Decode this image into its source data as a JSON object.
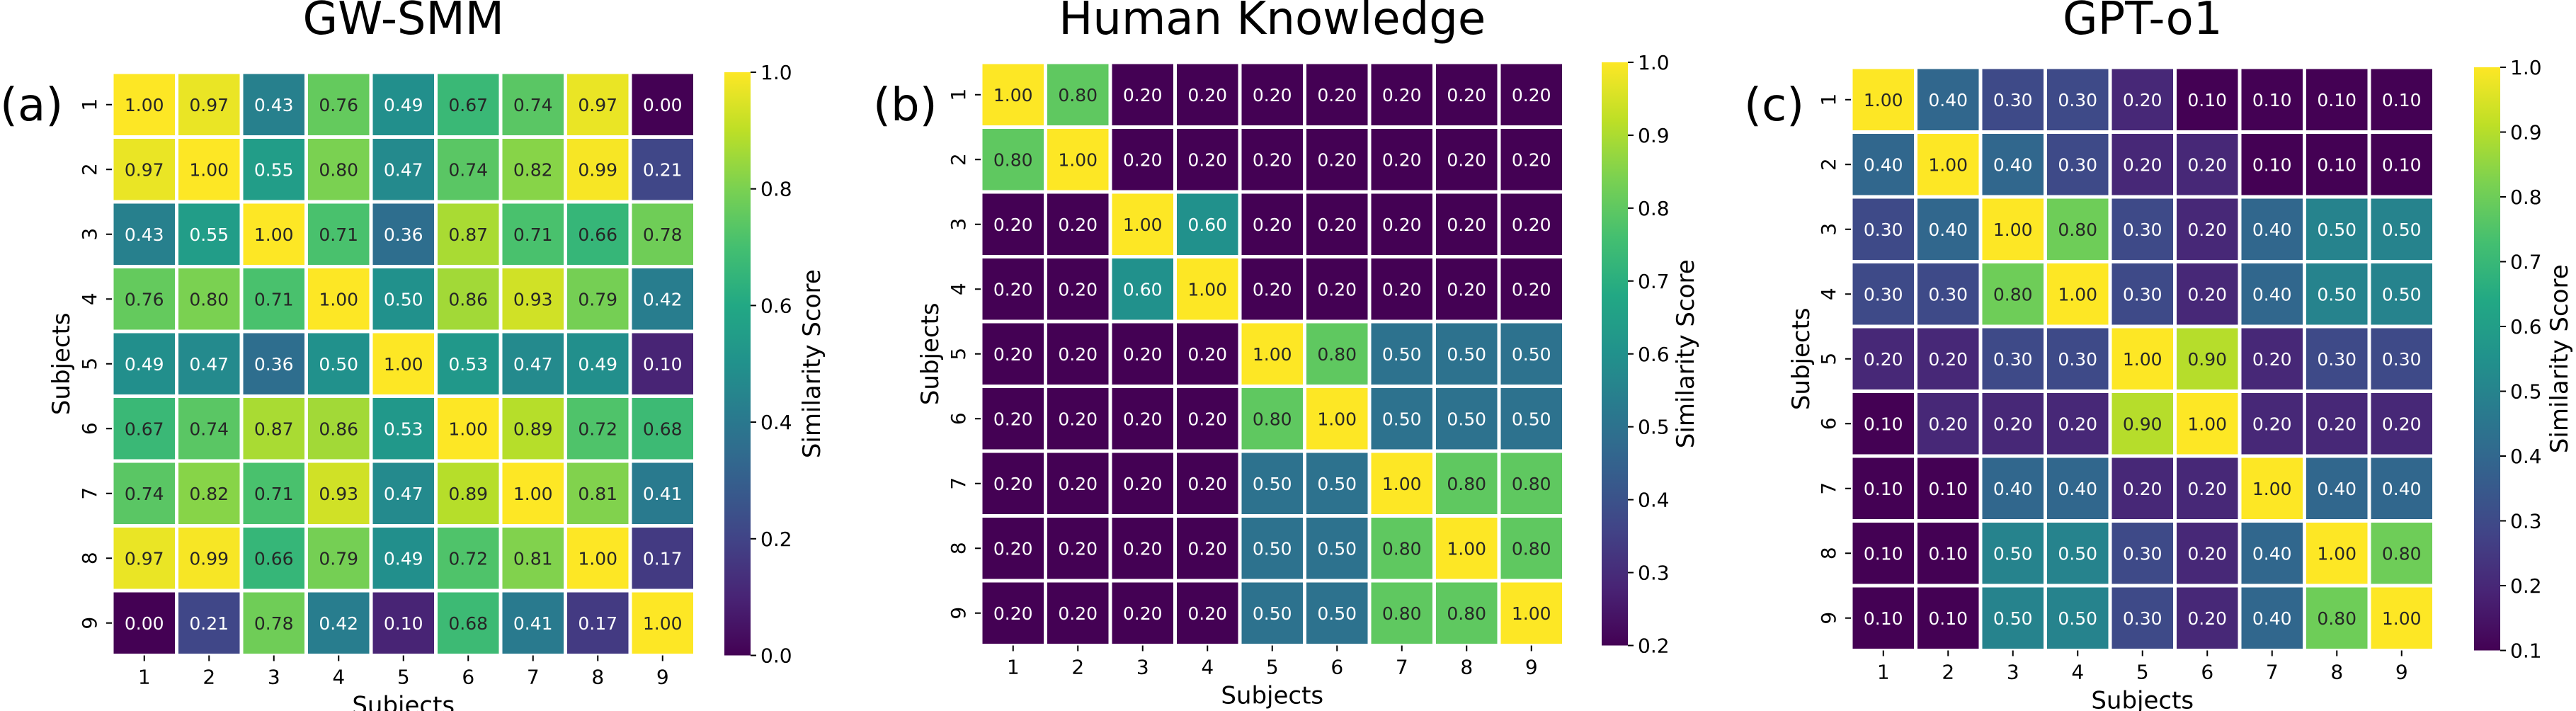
{
  "chart_data": [
    {
      "type": "heatmap",
      "panel_label": "(a)",
      "title": "GW-SMM",
      "xlabel": "Subjects",
      "ylabel": "Subjects",
      "x_categories": [
        "1",
        "2",
        "3",
        "4",
        "5",
        "6",
        "7",
        "8",
        "9"
      ],
      "y_categories": [
        "1",
        "2",
        "3",
        "4",
        "5",
        "6",
        "7",
        "8",
        "9"
      ],
      "values": [
        [
          1.0,
          0.97,
          0.43,
          0.76,
          0.49,
          0.67,
          0.74,
          0.97,
          0.0
        ],
        [
          0.97,
          1.0,
          0.55,
          0.8,
          0.47,
          0.74,
          0.82,
          0.99,
          0.21
        ],
        [
          0.43,
          0.55,
          1.0,
          0.71,
          0.36,
          0.87,
          0.71,
          0.66,
          0.78
        ],
        [
          0.76,
          0.8,
          0.71,
          1.0,
          0.5,
          0.86,
          0.93,
          0.79,
          0.42
        ],
        [
          0.49,
          0.47,
          0.36,
          0.5,
          1.0,
          0.53,
          0.47,
          0.49,
          0.1
        ],
        [
          0.67,
          0.74,
          0.87,
          0.86,
          0.53,
          1.0,
          0.89,
          0.72,
          0.68
        ],
        [
          0.74,
          0.82,
          0.71,
          0.93,
          0.47,
          0.89,
          1.0,
          0.81,
          0.41
        ],
        [
          0.97,
          0.99,
          0.66,
          0.79,
          0.49,
          0.72,
          0.81,
          1.0,
          0.17
        ],
        [
          0.0,
          0.21,
          0.78,
          0.42,
          0.1,
          0.68,
          0.41,
          0.17,
          1.0
        ]
      ],
      "colorbar": {
        "label": "Similarity Score",
        "range": [
          0.0,
          1.0
        ],
        "ticks": [
          "0.0",
          "0.2",
          "0.4",
          "0.6",
          "0.8",
          "1.0"
        ],
        "colormap": "viridis"
      }
    },
    {
      "type": "heatmap",
      "panel_label": "(b)",
      "title": "Human Knowledge",
      "xlabel": "Subjects",
      "ylabel": "Subjects",
      "x_categories": [
        "1",
        "2",
        "3",
        "4",
        "5",
        "6",
        "7",
        "8",
        "9"
      ],
      "y_categories": [
        "1",
        "2",
        "3",
        "4",
        "5",
        "6",
        "7",
        "8",
        "9"
      ],
      "values": [
        [
          1.0,
          0.8,
          0.2,
          0.2,
          0.2,
          0.2,
          0.2,
          0.2,
          0.2
        ],
        [
          0.8,
          1.0,
          0.2,
          0.2,
          0.2,
          0.2,
          0.2,
          0.2,
          0.2
        ],
        [
          0.2,
          0.2,
          1.0,
          0.6,
          0.2,
          0.2,
          0.2,
          0.2,
          0.2
        ],
        [
          0.2,
          0.2,
          0.6,
          1.0,
          0.2,
          0.2,
          0.2,
          0.2,
          0.2
        ],
        [
          0.2,
          0.2,
          0.2,
          0.2,
          1.0,
          0.8,
          0.5,
          0.5,
          0.5
        ],
        [
          0.2,
          0.2,
          0.2,
          0.2,
          0.8,
          1.0,
          0.5,
          0.5,
          0.5
        ],
        [
          0.2,
          0.2,
          0.2,
          0.2,
          0.5,
          0.5,
          1.0,
          0.8,
          0.8
        ],
        [
          0.2,
          0.2,
          0.2,
          0.2,
          0.5,
          0.5,
          0.8,
          1.0,
          0.8
        ],
        [
          0.2,
          0.2,
          0.2,
          0.2,
          0.5,
          0.5,
          0.8,
          0.8,
          1.0
        ]
      ],
      "colorbar": {
        "label": "Similarity Score",
        "range": [
          0.2,
          1.0
        ],
        "ticks": [
          "0.2",
          "0.3",
          "0.4",
          "0.5",
          "0.6",
          "0.7",
          "0.8",
          "0.9",
          "1.0"
        ],
        "colormap": "viridis"
      }
    },
    {
      "type": "heatmap",
      "panel_label": "(c)",
      "title": "GPT-o1",
      "xlabel": "Subjects",
      "ylabel": "Subjects",
      "x_categories": [
        "1",
        "2",
        "3",
        "4",
        "5",
        "6",
        "7",
        "8",
        "9"
      ],
      "y_categories": [
        "1",
        "2",
        "3",
        "4",
        "5",
        "6",
        "7",
        "8",
        "9"
      ],
      "values": [
        [
          1.0,
          0.4,
          0.3,
          0.3,
          0.2,
          0.1,
          0.1,
          0.1,
          0.1
        ],
        [
          0.4,
          1.0,
          0.4,
          0.3,
          0.2,
          0.2,
          0.1,
          0.1,
          0.1
        ],
        [
          0.3,
          0.4,
          1.0,
          0.8,
          0.3,
          0.2,
          0.4,
          0.5,
          0.5
        ],
        [
          0.3,
          0.3,
          0.8,
          1.0,
          0.3,
          0.2,
          0.4,
          0.5,
          0.5
        ],
        [
          0.2,
          0.2,
          0.3,
          0.3,
          1.0,
          0.9,
          0.2,
          0.3,
          0.3
        ],
        [
          0.1,
          0.2,
          0.2,
          0.2,
          0.9,
          1.0,
          0.2,
          0.2,
          0.2
        ],
        [
          0.1,
          0.1,
          0.4,
          0.4,
          0.2,
          0.2,
          1.0,
          0.4,
          0.4
        ],
        [
          0.1,
          0.1,
          0.5,
          0.5,
          0.3,
          0.2,
          0.4,
          1.0,
          0.8
        ],
        [
          0.1,
          0.1,
          0.5,
          0.5,
          0.3,
          0.2,
          0.4,
          0.8,
          1.0
        ]
      ],
      "colorbar": {
        "label": "Similarity Score",
        "range": [
          0.1,
          1.0
        ],
        "ticks": [
          "0.1",
          "0.2",
          "0.3",
          "0.4",
          "0.5",
          "0.6",
          "0.7",
          "0.8",
          "0.9",
          "1.0"
        ],
        "colormap": "viridis"
      }
    }
  ]
}
